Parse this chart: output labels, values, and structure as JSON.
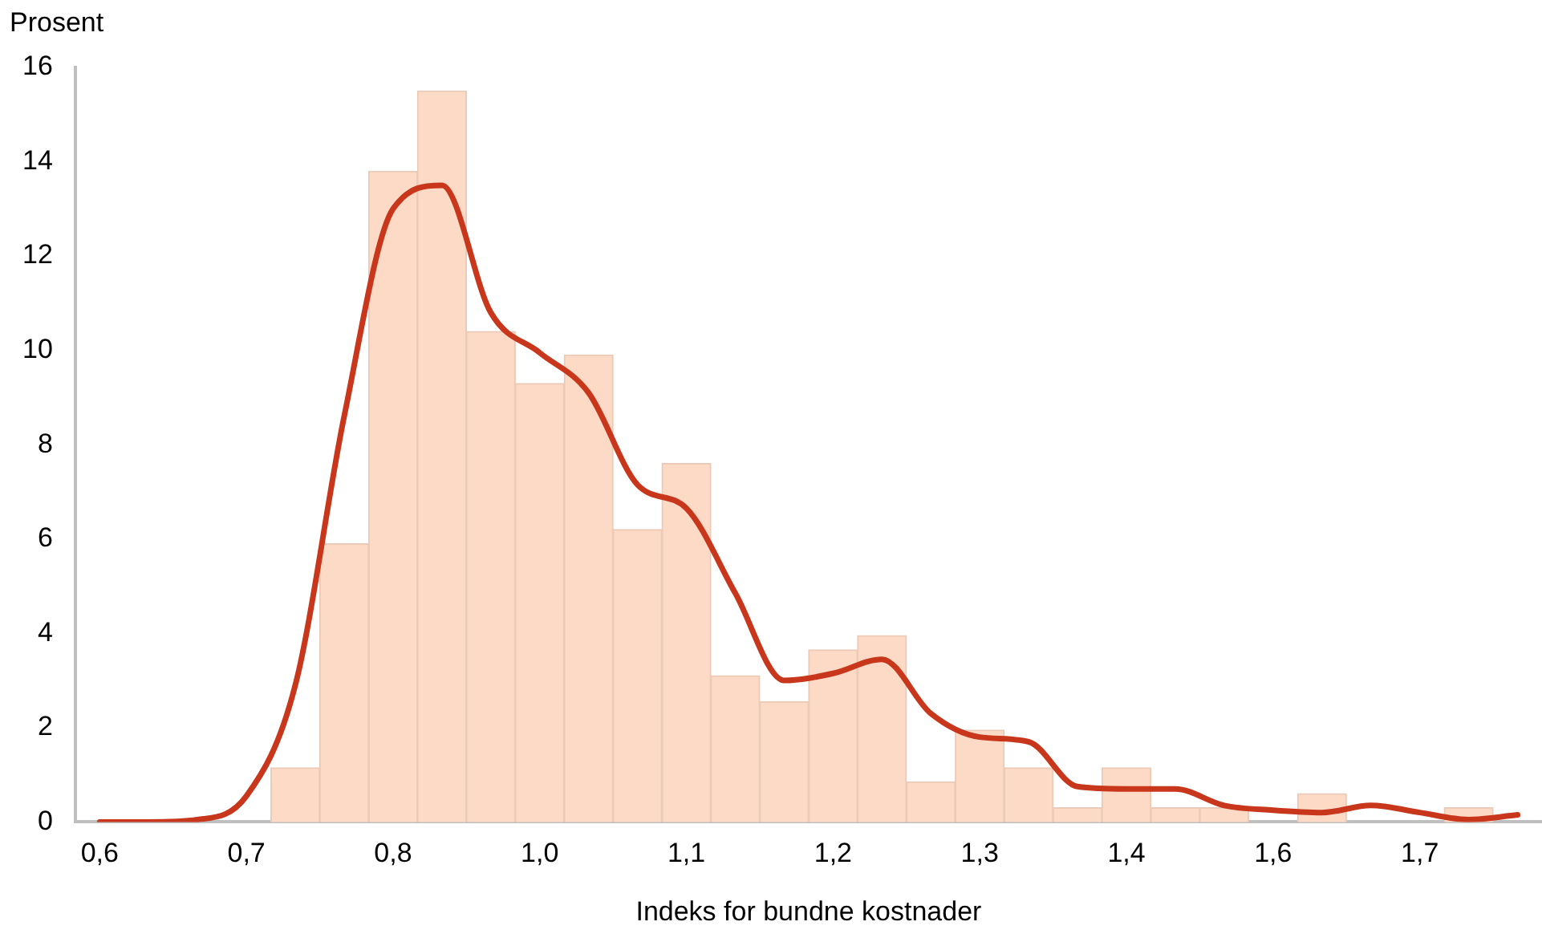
{
  "chart_data": {
    "type": "bar",
    "xlabel": "Indeks for bundne kostnader",
    "ylabel": "Prosent",
    "categories": [
      "0,6",
      null,
      null,
      "0,7",
      null,
      null,
      "0,8",
      null,
      null,
      "1,0",
      null,
      null,
      "1,1",
      null,
      null,
      "1,2",
      null,
      null,
      "1,3",
      null,
      null,
      "1,4",
      null,
      null,
      "1,6",
      null,
      null,
      "1,7",
      null,
      null
    ],
    "series": [
      {
        "color": "#fddac6",
        "values": [
          null,
          null,
          null,
          null,
          1.15,
          5.9,
          13.8,
          15.5,
          10.4,
          9.3,
          9.9,
          6.2,
          7.6,
          3.1,
          2.55,
          3.65,
          3.95,
          0.85,
          1.95,
          1.15,
          0.3,
          1.15,
          0.3,
          0.3,
          null,
          0.6,
          null,
          null,
          0.3,
          null
        ]
      },
      {
        "type": "line",
        "color": "#c8361b",
        "values": [
          0,
          0,
          0.05,
          0.55,
          2.9,
          8.6,
          13.0,
          13.5,
          10.8,
          9.95,
          9.1,
          7.15,
          6.65,
          4.85,
          3.0,
          3.15,
          3.45,
          2.3,
          1.8,
          1.7,
          0.75,
          0.7,
          0.7,
          0.35,
          0.25,
          0.2,
          0.35,
          0.2,
          0.05,
          0.15
        ]
      }
    ],
    "ylim": [
      0,
      16
    ],
    "yticks": [
      0,
      2,
      4,
      6,
      8,
      10,
      12,
      14,
      16
    ],
    "grid": false,
    "legend": false
  }
}
